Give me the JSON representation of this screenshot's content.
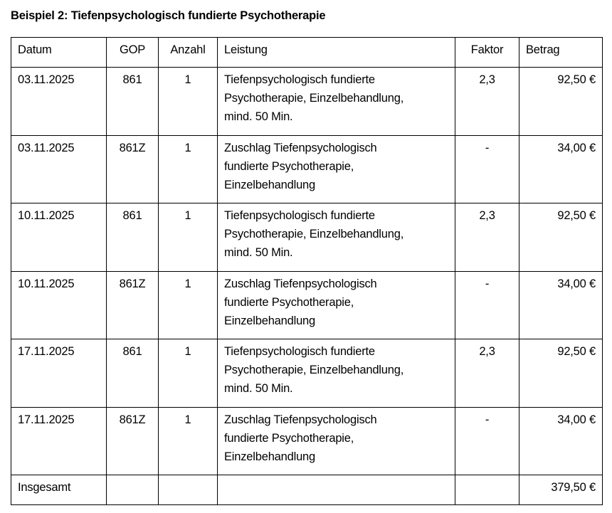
{
  "title": "Beispiel 2: Tiefenpsychologisch fundierte Psychotherapie",
  "columns": [
    "Datum",
    "GOP",
    "Anzahl",
    "Leistung",
    "Faktor",
    "Betrag"
  ],
  "rows": [
    {
      "datum": "03.11.2025",
      "gop": "861",
      "anzahl": "1",
      "leistung": [
        "Tiefenpsychologisch fundierte",
        "Psychotherapie, Einzelbehandlung,",
        "mind. 50 Min."
      ],
      "faktor": "2,3",
      "betrag": "92,50 €"
    },
    {
      "datum": "03.11.2025",
      "gop": "861Z",
      "anzahl": "1",
      "leistung": [
        "Zuschlag Tiefenpsychologisch",
        "fundierte Psychotherapie,",
        "Einzelbehandlung"
      ],
      "faktor": "-",
      "betrag": "34,00 €"
    },
    {
      "datum": "10.11.2025",
      "gop": "861",
      "anzahl": "1",
      "leistung": [
        "Tiefenpsychologisch fundierte",
        "Psychotherapie, Einzelbehandlung,",
        "mind. 50 Min."
      ],
      "faktor": "2,3",
      "betrag": "92,50 €"
    },
    {
      "datum": "10.11.2025",
      "gop": "861Z",
      "anzahl": "1",
      "leistung": [
        "Zuschlag Tiefenpsychologisch",
        "fundierte Psychotherapie,",
        "Einzelbehandlung"
      ],
      "faktor": "-",
      "betrag": "34,00 €"
    },
    {
      "datum": "17.11.2025",
      "gop": "861",
      "anzahl": "1",
      "leistung": [
        "Tiefenpsychologisch fundierte",
        "Psychotherapie, Einzelbehandlung,",
        "mind. 50 Min."
      ],
      "faktor": "2,3",
      "betrag": "92,50 €"
    },
    {
      "datum": "17.11.2025",
      "gop": "861Z",
      "anzahl": "1",
      "leistung": [
        "Zuschlag Tiefenpsychologisch",
        "fundierte Psychotherapie,",
        "Einzelbehandlung"
      ],
      "faktor": "-",
      "betrag": "34,00 €"
    }
  ],
  "total": {
    "label": "Insgesamt",
    "betrag": "379,50 €"
  }
}
